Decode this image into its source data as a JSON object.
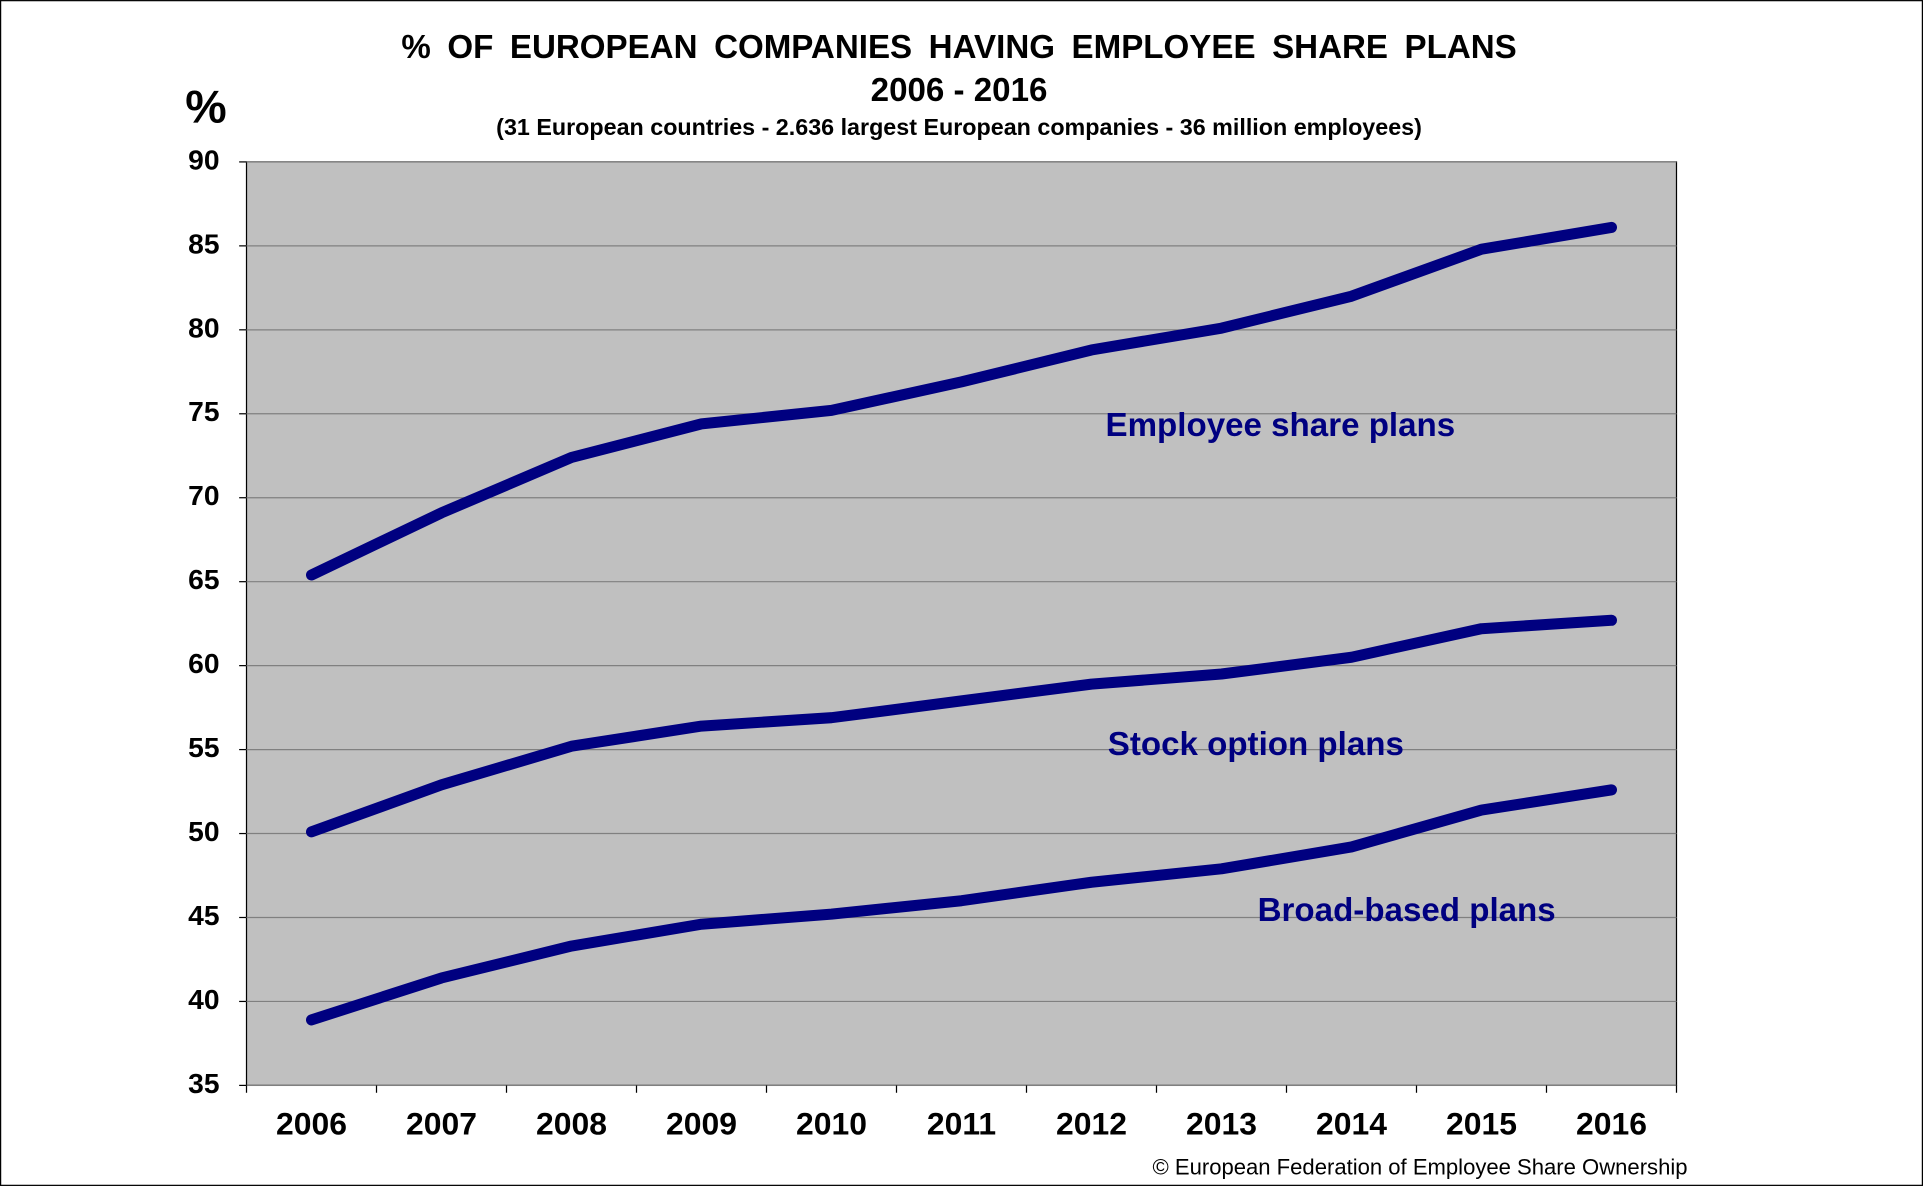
{
  "chart_data": {
    "type": "line",
    "title": "% OF EUROPEAN COMPANIES HAVING EMPLOYEE SHARE PLANS",
    "subtitle": "2006 - 2016",
    "note": "(31 European countries - 2.636 largest European companies - 36 million employees)",
    "y_label": "%",
    "source": "© European Federation of Employee Share Ownership",
    "categories": [
      "2006",
      "2007",
      "2008",
      "2009",
      "2010",
      "2011",
      "2012",
      "2013",
      "2014",
      "2015",
      "2016"
    ],
    "series": [
      {
        "name": "Employee share plans",
        "color": "#000080",
        "values": [
          65.4,
          69.1,
          72.4,
          74.4,
          75.2,
          76.9,
          78.8,
          80.1,
          82.0,
          84.8,
          86.1
        ]
      },
      {
        "name": "Stock option plans",
        "color": "#000080",
        "values": [
          50.1,
          52.9,
          55.2,
          56.4,
          56.9,
          57.9,
          58.9,
          59.5,
          60.5,
          62.2,
          62.7
        ]
      },
      {
        "name": "Broad-based plans",
        "color": "#000080",
        "values": [
          38.9,
          41.4,
          43.3,
          44.6,
          45.2,
          46.0,
          47.1,
          47.9,
          49.2,
          51.4,
          52.6
        ]
      }
    ],
    "ylim": [
      35,
      90
    ],
    "yticks": [
      35,
      40,
      45,
      50,
      55,
      60,
      65,
      70,
      75,
      80,
      85,
      90
    ],
    "grid": true
  }
}
